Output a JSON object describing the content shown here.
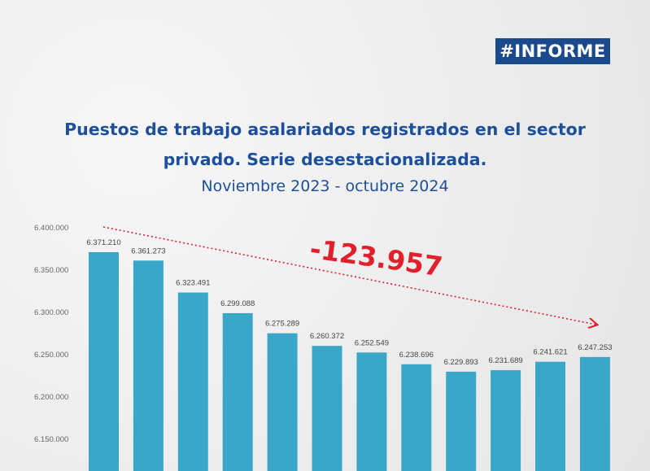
{
  "badge": "#INFORME",
  "title_line1": "Puestos de trabajo asalariados registrados en el sector",
  "title_line2": "privado. Serie desestacionalizada.",
  "subtitle": "Noviembre 2023 - octubre 2024",
  "annotation": "-123.957",
  "colors": {
    "bar": "#3aa7c9",
    "title": "#1d4f9a",
    "badge_bg": "#1a4a8c",
    "annotation": "#e0202a"
  },
  "chart_data": {
    "type": "bar",
    "title": "Puestos de trabajo asalariados registrados en el sector privado. Serie desestacionalizada.",
    "subtitle": "Noviembre 2023 - octubre 2024",
    "values": [
      6371210,
      6361273,
      6323491,
      6299088,
      6275289,
      6260372,
      6252549,
      6238696,
      6229893,
      6231689,
      6241621,
      6247253
    ],
    "value_labels": [
      "6.371.210",
      "6.361.273",
      "6.323.491",
      "6.299.088",
      "6.275.289",
      "6.260.372",
      "6.252.549",
      "6.238.696",
      "6.229.893",
      "6.231.689",
      "6.241.621",
      "6.247.253"
    ],
    "yticks": [
      "6.400.000",
      "6.350.000",
      "6.300.000",
      "6.250.000",
      "6.200.000",
      "6.150.000"
    ],
    "ytick_values": [
      6400000,
      6350000,
      6300000,
      6250000,
      6200000,
      6150000
    ],
    "ylim": [
      6125000,
      6400000
    ],
    "grid": false,
    "trend_annotation": "-123.957"
  }
}
